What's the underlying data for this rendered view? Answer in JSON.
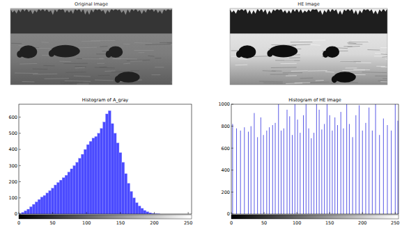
{
  "images": [
    {
      "title": "Original Image"
    },
    {
      "title": "HE Image"
    }
  ],
  "chart_data": [
    {
      "type": "histogram",
      "title": "Histogram of A_gray",
      "color": "#4b4bff",
      "bins": [
        0,
        4,
        8,
        12,
        16,
        20,
        24,
        28,
        32,
        36,
        40,
        44,
        48,
        52,
        56,
        60,
        64,
        68,
        72,
        76,
        80,
        84,
        88,
        92,
        96,
        100,
        104,
        108,
        112,
        116,
        120,
        124,
        128,
        132,
        136,
        140,
        144,
        148,
        152,
        156,
        160,
        164,
        168,
        172,
        176,
        180,
        184,
        188,
        192,
        196,
        200,
        204,
        208,
        212,
        216,
        220,
        224,
        228,
        232,
        236,
        240,
        244,
        248,
        252,
        256
      ],
      "counts": [
        3,
        10,
        20,
        30,
        45,
        60,
        75,
        90,
        105,
        115,
        130,
        145,
        160,
        180,
        195,
        210,
        225,
        240,
        260,
        280,
        300,
        320,
        345,
        370,
        400,
        430,
        450,
        470,
        480,
        500,
        530,
        570,
        620,
        640,
        560,
        500,
        440,
        380,
        320,
        250,
        190,
        140,
        100,
        70,
        50,
        35,
        22,
        14,
        8,
        4,
        2,
        1,
        0,
        0,
        0,
        0,
        0,
        0,
        0,
        0,
        0,
        0,
        0,
        0
      ],
      "xlim": [
        0,
        255
      ],
      "xticks": [
        0,
        50,
        100,
        150,
        200,
        250
      ],
      "ylim": [
        0,
        680
      ],
      "yticks": [
        0,
        100,
        200,
        300,
        400,
        500,
        600
      ]
    },
    {
      "type": "bar",
      "title": "Histogram of HE Image",
      "color": "#5a5ae6",
      "x": [
        2,
        8,
        14,
        20,
        26,
        30,
        35,
        40,
        45,
        49,
        54,
        58,
        63,
        67,
        72,
        76,
        80,
        85,
        89,
        93,
        97,
        101,
        105,
        110,
        114,
        118,
        122,
        126,
        130,
        134,
        138,
        142,
        146,
        150,
        154,
        158,
        162,
        167,
        171,
        176,
        180,
        185,
        190,
        195,
        200,
        205,
        210,
        215,
        220,
        226,
        232,
        238,
        244,
        250,
        254
      ],
      "values": [
        820,
        780,
        760,
        790,
        750,
        800,
        920,
        700,
        880,
        720,
        760,
        790,
        810,
        830,
        1000,
        760,
        780,
        950,
        890,
        720,
        1000,
        860,
        740,
        900,
        1000,
        780,
        690,
        740,
        1000,
        950,
        770,
        820,
        1000,
        900,
        760,
        880,
        810,
        930,
        780,
        1000,
        820,
        700,
        900,
        990,
        760,
        830,
        970,
        760,
        1000,
        720,
        870,
        810,
        760,
        1000,
        850
      ],
      "xlim": [
        0,
        255
      ],
      "xticks": [
        0,
        50,
        100,
        150,
        200,
        250
      ],
      "ylim": [
        0,
        1000
      ],
      "yticks": [
        0,
        200,
        400,
        600,
        800,
        1000
      ]
    }
  ]
}
